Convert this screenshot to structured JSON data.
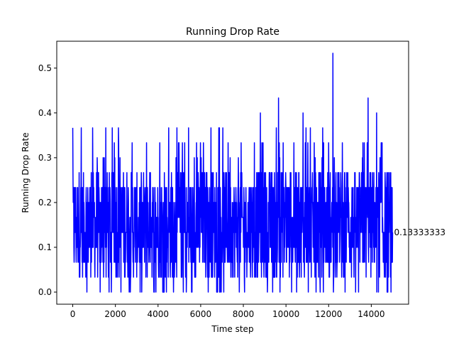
{
  "chart_data": {
    "type": "line",
    "title": "Running Drop Rate",
    "xlabel": "Time step",
    "ylabel": "Running Drop Rate",
    "xlim": [
      -750,
      15750
    ],
    "ylim": [
      -0.027,
      0.56
    ],
    "xticks": [
      0,
      2000,
      4000,
      6000,
      8000,
      10000,
      12000,
      14000
    ],
    "xtick_labels": [
      "0",
      "2000",
      "4000",
      "6000",
      "8000",
      "10000",
      "12000",
      "14000"
    ],
    "yticks": [
      0.0,
      0.1,
      0.2,
      0.3,
      0.4,
      0.5
    ],
    "ytick_labels": [
      "0.0",
      "0.1",
      "0.2",
      "0.3",
      "0.4",
      "0.5"
    ],
    "grid": false,
    "series": [
      {
        "color": "#0000ff",
        "x_range": [
          0,
          15000
        ],
        "num_points": 15000,
        "y_min": 0.0,
        "y_max": 0.5333,
        "typical_band": [
          0.033,
          0.267
        ],
        "y_start": 0.3583,
        "y_end": 0.1333,
        "peaks": [
          {
            "x": 12200,
            "y": 0.5333
          },
          {
            "x": 9650,
            "y": 0.4333
          },
          {
            "x": 13850,
            "y": 0.4333
          },
          {
            "x": 8800,
            "y": 0.4
          },
          {
            "x": 10800,
            "y": 0.4
          },
          {
            "x": 14250,
            "y": 0.4
          },
          {
            "x": 6850,
            "y": 0.3667
          },
          {
            "x": 4500,
            "y": 0.3667
          },
          {
            "x": 1550,
            "y": 0.3667
          },
          {
            "x": 400,
            "y": 0.3667
          }
        ]
      }
    ],
    "annotation": {
      "text": "0.13333333",
      "x": 15000,
      "y": 0.1333
    }
  }
}
